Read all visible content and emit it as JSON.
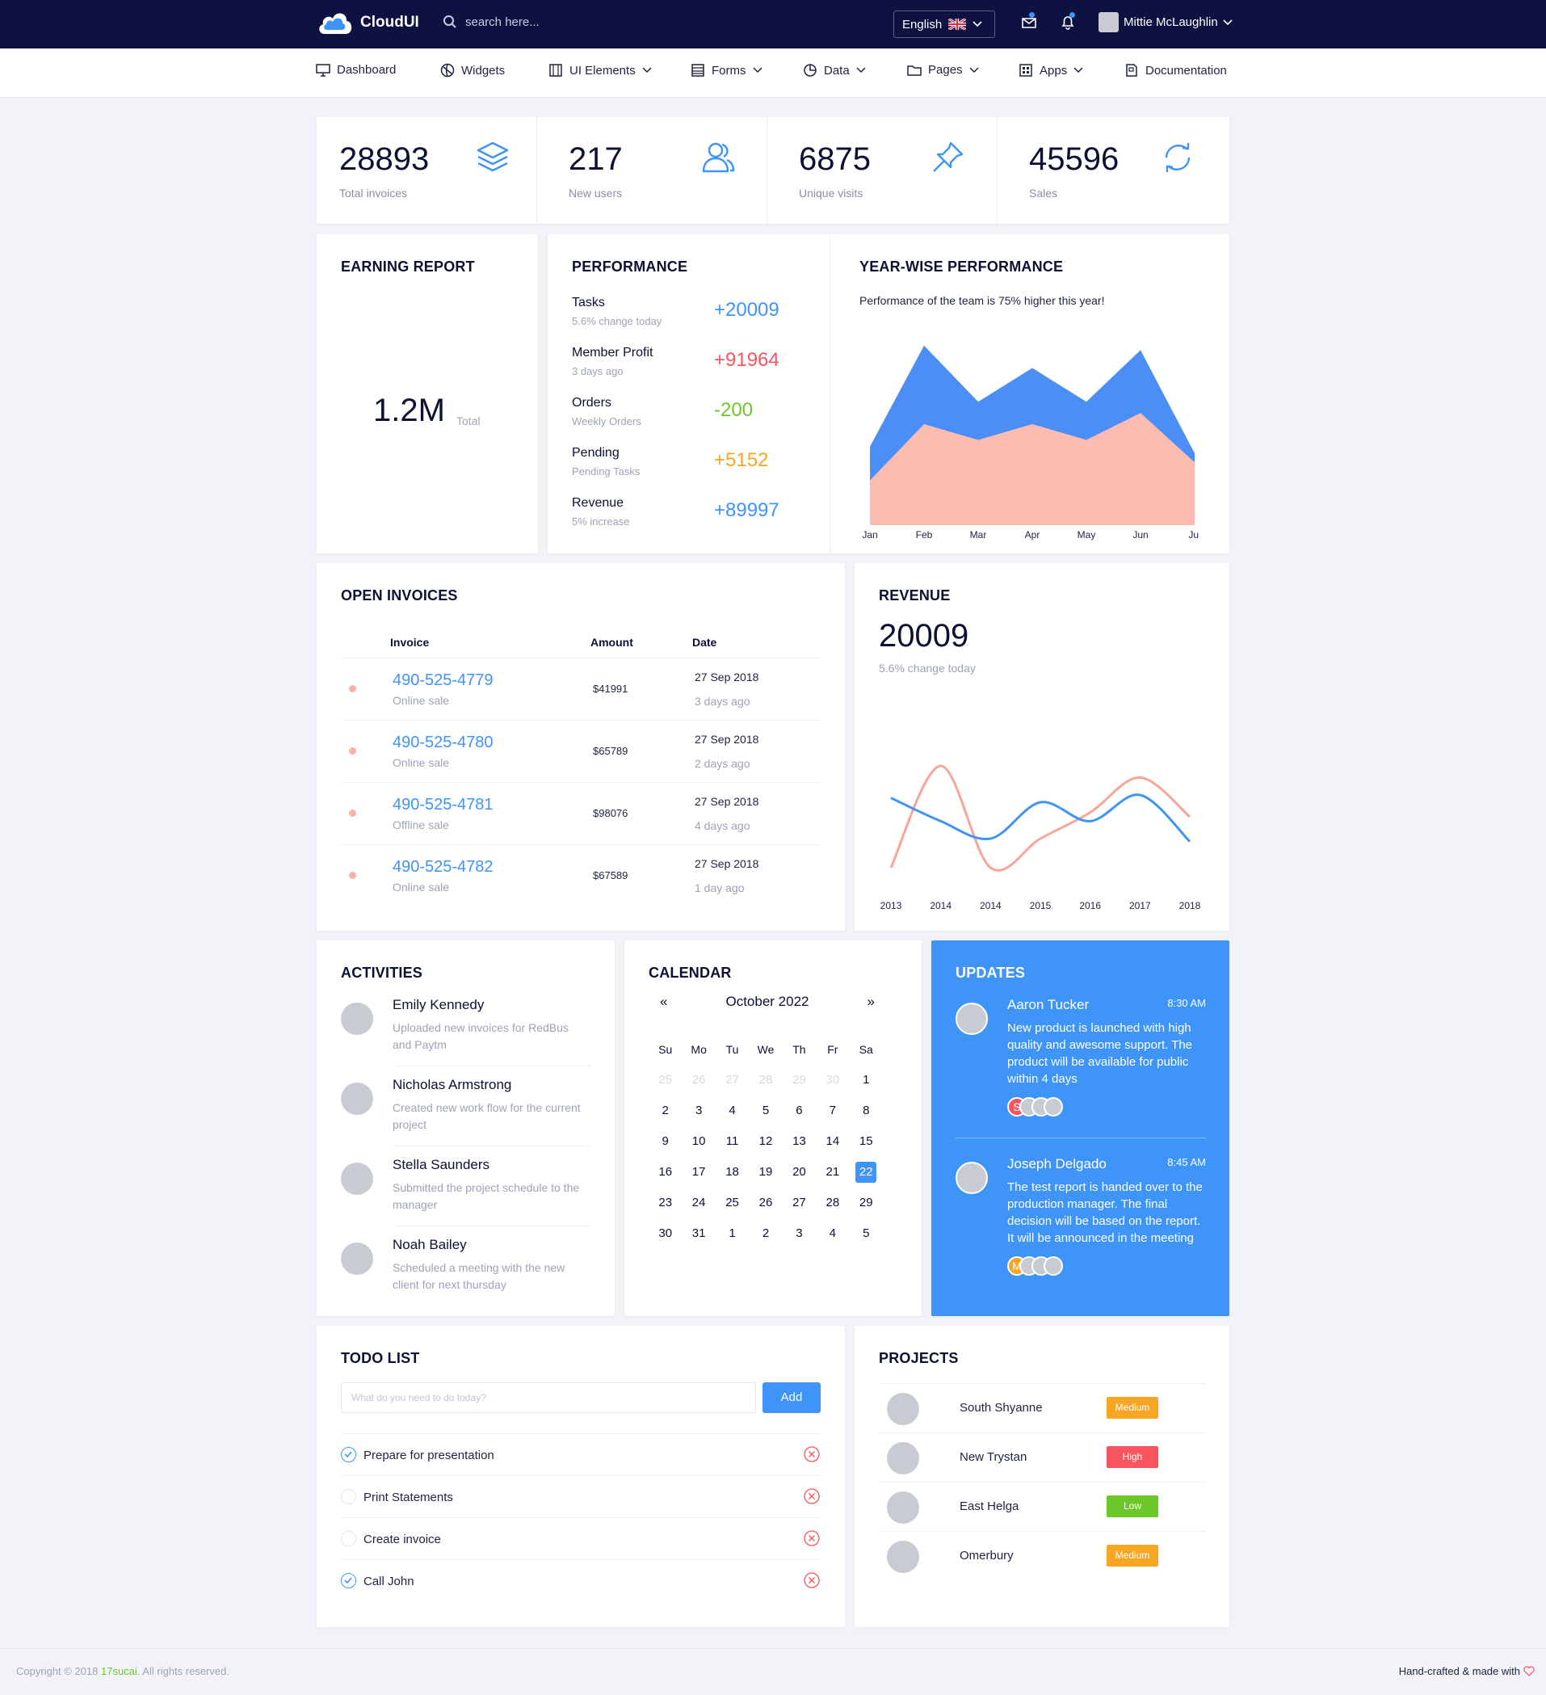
{
  "topbar": {
    "brand": "CloudUI",
    "search_placeholder": "search here...",
    "language": "English",
    "user_name": "Mittie McLaughlin"
  },
  "nav": [
    "Dashboard",
    "Widgets",
    "UI Elements",
    "Forms",
    "Data",
    "Pages",
    "Apps",
    "Documentation"
  ],
  "stats": [
    {
      "value": "28893",
      "label": "Total invoices",
      "icon": "layers-icon"
    },
    {
      "value": "217",
      "label": "New users",
      "icon": "users-icon"
    },
    {
      "value": "6875",
      "label": "Unique visits",
      "icon": "pin-icon"
    },
    {
      "value": "45596",
      "label": "Sales",
      "icon": "refresh-icon"
    }
  ],
  "earning": {
    "title": "EARNING REPORT",
    "value": "1.2M",
    "unit": "Total"
  },
  "performance": {
    "title": "PERFORMANCE",
    "rows": [
      {
        "label": "Tasks",
        "sub": "5.6% change today",
        "value": "+20009",
        "color": "#3f94f7"
      },
      {
        "label": "Member Profit",
        "sub": "3 days ago",
        "value": "+91964",
        "color": "#f6545f"
      },
      {
        "label": "Orders",
        "sub": "Weekly Orders",
        "value": "-200",
        "color": "#6cc82a"
      },
      {
        "label": "Pending",
        "sub": "Pending Tasks",
        "value": "+5152",
        "color": "#f6a623"
      },
      {
        "label": "Revenue",
        "sub": "5% increase",
        "value": "+89997",
        "color": "#3f94f7"
      }
    ]
  },
  "yearwise": {
    "title": "YEAR-WISE PERFORMANCE",
    "subtitle": "Performance of the team is 75% higher this year!"
  },
  "invoices": {
    "title": "OPEN INVOICES",
    "headers": [
      "Invoice",
      "Amount",
      "Date"
    ],
    "rows": [
      {
        "no": "490-525-4779",
        "type": "Online sale",
        "amount": "$41991",
        "date": "27 Sep 2018",
        "ago": "3 days ago"
      },
      {
        "no": "490-525-4780",
        "type": "Online sale",
        "amount": "$65789",
        "date": "27 Sep 2018",
        "ago": "2 days ago"
      },
      {
        "no": "490-525-4781",
        "type": "Offline sale",
        "amount": "$98076",
        "date": "27 Sep 2018",
        "ago": "4 days ago"
      },
      {
        "no": "490-525-4782",
        "type": "Online sale",
        "amount": "$67589",
        "date": "27 Sep 2018",
        "ago": "1 day ago"
      }
    ]
  },
  "revenue": {
    "title": "REVENUE",
    "value": "20009",
    "sub": "5.6% change today"
  },
  "activities": {
    "title": "ACTIVITIES",
    "items": [
      {
        "name": "Emily Kennedy",
        "text": "Uploaded new invoices for RedBus and Paytm"
      },
      {
        "name": "Nicholas Armstrong",
        "text": "Created new work flow for the current project"
      },
      {
        "name": "Stella Saunders",
        "text": "Submitted the project schedule to the manager"
      },
      {
        "name": "Noah Bailey",
        "text": "Scheduled a meeting with the new client for next thursday"
      }
    ]
  },
  "calendar": {
    "title": "CALENDAR",
    "month": "October 2022",
    "prev": "«",
    "next": "»",
    "days": [
      "Su",
      "Mo",
      "Tu",
      "We",
      "Th",
      "Fr",
      "Sa"
    ],
    "cells": [
      "25",
      "26",
      "27",
      "28",
      "29",
      "30",
      "1",
      "2",
      "3",
      "4",
      "5",
      "6",
      "7",
      "8",
      "9",
      "10",
      "11",
      "12",
      "13",
      "14",
      "15",
      "16",
      "17",
      "18",
      "19",
      "20",
      "21",
      "22",
      "23",
      "24",
      "25",
      "26",
      "27",
      "28",
      "29",
      "30",
      "31",
      "1",
      "2",
      "3",
      "4",
      "5"
    ],
    "today_index": 27
  },
  "updates": {
    "title": "UPDATES",
    "items": [
      {
        "name": "Aaron Tucker",
        "time": "8:30 AM",
        "text": "New product is launched with high quality and awesome support. The product will be available for public within 4 days",
        "initial": "S",
        "initial_color": "#f6545f"
      },
      {
        "name": "Joseph Delgado",
        "time": "8:45 AM",
        "text": "The test report is handed over to the production manager. The final decision will be based on the report. It will be announced in the meeting",
        "initial": "M",
        "initial_color": "#f6a623"
      }
    ]
  },
  "todo": {
    "title": "TODO LIST",
    "placeholder": "What do you need to do today?",
    "add": "Add",
    "items": [
      {
        "label": "Prepare for presentation",
        "done": true
      },
      {
        "label": "Print Statements",
        "done": false
      },
      {
        "label": "Create invoice",
        "done": false
      },
      {
        "label": "Call John",
        "done": true
      }
    ]
  },
  "projects": {
    "title": "PROJECTS",
    "items": [
      {
        "name": "South Shyanne",
        "priority": "Medium",
        "color": "#f6a623"
      },
      {
        "name": "New Trystan",
        "priority": "High",
        "color": "#f6545f"
      },
      {
        "name": "East Helga",
        "priority": "Low",
        "color": "#6cc82a"
      },
      {
        "name": "Omerbury",
        "priority": "Medium",
        "color": "#f6a623"
      }
    ]
  },
  "footer": {
    "copyright_pre": "Copyright © 2018 ",
    "brand": "17sucai",
    "copyright_post": ". All rights reserved.",
    "right": "Hand-crafted & made with"
  },
  "chart_data": [
    {
      "type": "area",
      "categories": [
        "Jan",
        "Feb",
        "Mar",
        "Apr",
        "May",
        "Jun",
        "Jul"
      ],
      "series": [
        {
          "values": [
            35,
            80,
            55,
            70,
            55,
            78,
            32
          ],
          "color": "#4b8ff6"
        },
        {
          "values": [
            20,
            45,
            38,
            45,
            38,
            50,
            28
          ],
          "color": "#fcbcb0"
        }
      ],
      "ylim": [
        0,
        90
      ]
    },
    {
      "type": "line",
      "categories": [
        "2013",
        "2014",
        "2014",
        "2015",
        "2016",
        "2017",
        "2018"
      ],
      "series": [
        {
          "values": [
            58,
            42,
            30,
            55,
            42,
            60,
            28
          ],
          "color": "#3f94f7"
        },
        {
          "values": [
            10,
            80,
            10,
            30,
            48,
            72,
            45
          ],
          "color": "#f8a598"
        }
      ],
      "ylim": [
        0,
        100
      ]
    }
  ]
}
